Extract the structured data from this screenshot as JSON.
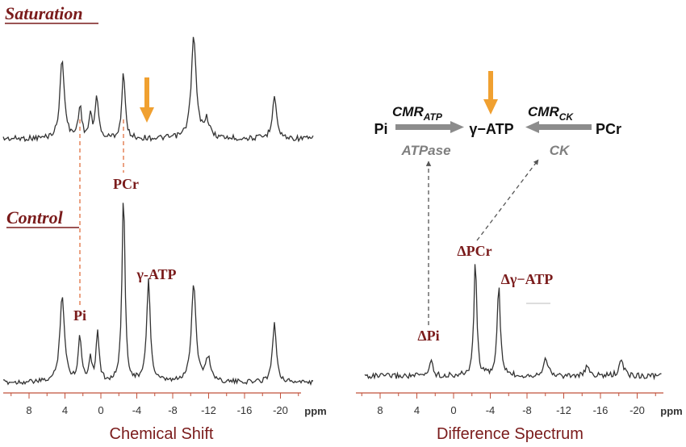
{
  "colors": {
    "dark_red": "#7a1b1b",
    "orange": "#f0a030",
    "trace": "#333333",
    "axis": "#c0503a",
    "arrow_gray": "#8c8c8c",
    "text_gray": "#7f7f7f"
  },
  "left_panel": {
    "saturation_label": "Saturation",
    "control_label": "Control",
    "peak_labels": {
      "pcr": "PCr",
      "gamma_atp": "γ-ATP",
      "pi": "Pi"
    },
    "axis": {
      "ticks": [
        "8",
        "4",
        "0",
        "-4",
        "-8",
        "-12",
        "-16",
        "-20"
      ],
      "unit": "ppm",
      "title": "Chemical Shift"
    }
  },
  "right_panel": {
    "scheme": {
      "pi": "Pi",
      "gamma_atp": "γ−ATP",
      "pcr": "PCr",
      "cmr_atp_main": "CMR",
      "cmr_atp_sub": "ATP",
      "cmr_ck_main": "CMR",
      "cmr_ck_sub": "CK",
      "atpase": "ATPase",
      "ck": "CK"
    },
    "peak_labels": {
      "delta_pcr": "ΔPCr",
      "delta_gamma_atp": "Δγ−ATP",
      "delta_pi": "ΔPi"
    },
    "axis": {
      "ticks": [
        "8",
        "4",
        "0",
        "-4",
        "-8",
        "-12",
        "-16",
        "-20"
      ],
      "unit": "ppm",
      "title": "Difference Spectrum"
    }
  }
}
